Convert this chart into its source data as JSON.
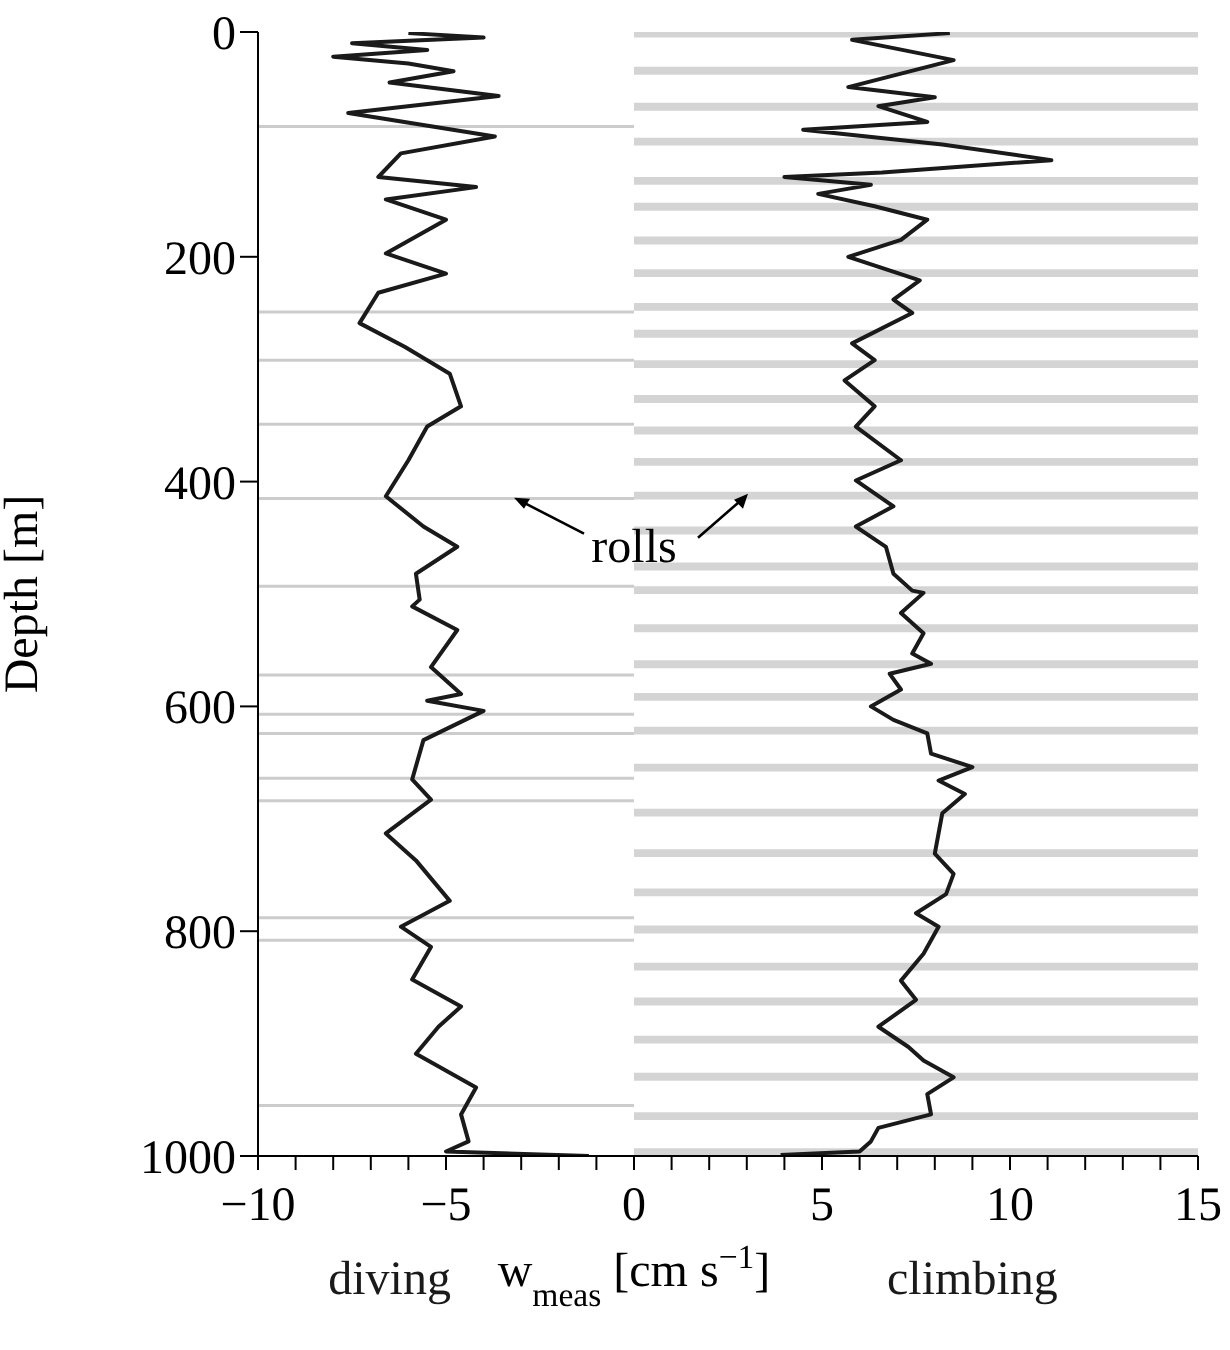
{
  "chart_data": {
    "type": "line",
    "xlabel": "w$_{meas}$ [cm s$^{−1}$]",
    "ylabel": "Depth [m]",
    "xlim": [
      -10,
      15
    ],
    "ylim": [
      1000,
      0
    ],
    "xticks": [
      {
        "value": -10,
        "label": "−10"
      },
      {
        "value": -9,
        "label": null
      },
      {
        "value": -8,
        "label": null
      },
      {
        "value": -7,
        "label": null
      },
      {
        "value": -6,
        "label": null
      },
      {
        "value": -5,
        "label": "−5"
      },
      {
        "value": -4,
        "label": null
      },
      {
        "value": -3,
        "label": null
      },
      {
        "value": -2,
        "label": null
      },
      {
        "value": -1,
        "label": null
      },
      0,
      {
        "value": 1,
        "label": null
      },
      {
        "value": 2,
        "label": null
      },
      {
        "value": 3,
        "label": null
      },
      {
        "value": 4,
        "label": null
      },
      5,
      {
        "value": 6,
        "label": null
      },
      {
        "value": 7,
        "label": null
      },
      {
        "value": 8,
        "label": null
      },
      {
        "value": 9,
        "label": null
      },
      10,
      {
        "value": 11,
        "label": null
      },
      {
        "value": 12,
        "label": null
      },
      {
        "value": 13,
        "label": null
      },
      {
        "value": 14,
        "label": null
      },
      15
    ],
    "yticks": [
      0,
      200,
      400,
      600,
      800,
      1000
    ],
    "series": [
      {
        "name": "diving",
        "color": "#1a1a1a",
        "x": [
          -6.0,
          -4.0,
          -7.5,
          -5.5,
          -8.0,
          -6.0,
          -4.8,
          -6.5,
          -3.6,
          -7.6,
          -3.7,
          -6.2,
          -6.8,
          -4.2,
          -6.6,
          -5.0,
          -6.6,
          -5.0,
          -6.8,
          -7.3,
          -6.1,
          -4.9,
          -4.6,
          -5.5,
          -6.0,
          -6.6,
          -5.6,
          -4.7,
          -5.8,
          -5.7,
          -5.9,
          -4.7,
          -5.4,
          -4.6,
          -5.5,
          -4.0,
          -5.6,
          -5.9,
          -5.4,
          -6.6,
          -5.8,
          -4.9,
          -6.2,
          -5.4,
          -5.9,
          -4.6,
          -5.2,
          -5.8,
          -4.2,
          -4.6,
          -4.4,
          -5.0,
          -1.2
        ],
        "values": [
          1,
          5,
          10,
          16,
          22,
          28,
          35,
          45,
          57,
          72,
          93,
          108,
          129,
          138,
          149,
          167,
          197,
          215,
          232,
          259,
          280,
          304,
          333,
          351,
          381,
          413,
          440,
          458,
          482,
          505,
          511,
          532,
          565,
          589,
          595,
          604,
          630,
          665,
          683,
          713,
          737,
          773,
          796,
          814,
          843,
          867,
          885,
          909,
          939,
          963,
          987,
          996,
          1000
        ]
      },
      {
        "name": "climbing",
        "color": "#1a1a1a",
        "x": [
          8.4,
          5.8,
          8.5,
          5.7,
          8.0,
          6.5,
          7.8,
          4.5,
          8.2,
          11.1,
          6.6,
          4.0,
          6.3,
          4.9,
          6.4,
          7.8,
          7.1,
          5.7,
          7.6,
          6.9,
          7.4,
          5.8,
          6.4,
          5.6,
          6.4,
          5.9,
          7.1,
          5.9,
          6.9,
          5.9,
          6.7,
          6.9,
          7.4,
          7.7,
          7.1,
          7.7,
          7.4,
          7.9,
          6.8,
          7.1,
          6.3,
          6.9,
          7.8,
          7.9,
          9.0,
          8.1,
          8.8,
          8.2,
          8.1,
          8.0,
          8.5,
          8.3,
          7.5,
          8.1,
          7.7,
          7.1,
          7.5,
          6.5,
          7.3,
          7.7,
          8.5,
          7.8,
          7.9,
          6.5,
          6.3,
          6.0,
          3.9
        ],
        "values": [
          1,
          7,
          25,
          49,
          58,
          66,
          80,
          87,
          100,
          114,
          125,
          129,
          136,
          144,
          155,
          167,
          185,
          200,
          221,
          238,
          250,
          277,
          292,
          310,
          333,
          351,
          381,
          399,
          422,
          440,
          458,
          482,
          497,
          499,
          517,
          535,
          553,
          562,
          571,
          585,
          600,
          612,
          624,
          642,
          654,
          666,
          678,
          695,
          713,
          731,
          749,
          767,
          784,
          796,
          820,
          844,
          861,
          885,
          903,
          915,
          930,
          945,
          963,
          975,
          987,
          996,
          999
        ]
      }
    ],
    "ref_lines": [
      {
        "axis": "y",
        "value": 84,
        "color": "#cccccc"
      },
      {
        "axis": "y",
        "value": 249,
        "color": "#cccccc"
      },
      {
        "axis": "y",
        "value": 292,
        "color": "#cccccc"
      },
      {
        "axis": "y",
        "value": 349,
        "color": "#cccccc"
      },
      {
        "axis": "y",
        "value": 415,
        "color": "#cccccc"
      },
      {
        "axis": "y",
        "value": 493,
        "color": "#cccccc"
      },
      {
        "axis": "y",
        "value": 572,
        "color": "#cccccc"
      },
      {
        "axis": "y",
        "value": 607,
        "color": "#cccccc"
      },
      {
        "axis": "y",
        "value": 624,
        "color": "#cccccc"
      },
      {
        "axis": "y",
        "value": 664,
        "color": "#cccccc"
      },
      {
        "axis": "y",
        "value": 684,
        "color": "#cccccc"
      },
      {
        "axis": "y",
        "value": 788,
        "color": "#cccccc"
      },
      {
        "axis": "y",
        "value": 808,
        "color": "#cccccc"
      },
      {
        "axis": "y",
        "value": 955,
        "color": "#cccccc"
      }
    ],
    "bands": [
      {
        "axis": "y",
        "from": 0,
        "to": 5,
        "color": "#d4d4d4"
      },
      {
        "axis": "y",
        "from": 31,
        "to": 38,
        "color": "#d4d4d4"
      },
      {
        "axis": "y",
        "from": 63,
        "to": 70,
        "color": "#d4d4d4"
      },
      {
        "axis": "y",
        "from": 94,
        "to": 101,
        "color": "#d4d4d4"
      },
      {
        "axis": "y",
        "from": 129,
        "to": 136,
        "color": "#d4d4d4"
      },
      {
        "axis": "y",
        "from": 152,
        "to": 159,
        "color": "#d4d4d4"
      },
      {
        "axis": "y",
        "from": 182,
        "to": 189,
        "color": "#d4d4d4"
      },
      {
        "axis": "y",
        "from": 211,
        "to": 218,
        "color": "#d4d4d4"
      },
      {
        "axis": "y",
        "from": 241,
        "to": 248,
        "color": "#d4d4d4"
      },
      {
        "axis": "y",
        "from": 265,
        "to": 272,
        "color": "#d4d4d4"
      },
      {
        "axis": "y",
        "from": 292,
        "to": 299,
        "color": "#d4d4d4"
      },
      {
        "axis": "y",
        "from": 323,
        "to": 330,
        "color": "#d4d4d4"
      },
      {
        "axis": "y",
        "from": 351,
        "to": 358,
        "color": "#d4d4d4"
      },
      {
        "axis": "y",
        "from": 379,
        "to": 386,
        "color": "#d4d4d4"
      },
      {
        "axis": "y",
        "from": 409,
        "to": 416,
        "color": "#d4d4d4"
      },
      {
        "axis": "y",
        "from": 440,
        "to": 447,
        "color": "#d4d4d4"
      },
      {
        "axis": "y",
        "from": 472,
        "to": 479,
        "color": "#d4d4d4"
      },
      {
        "axis": "y",
        "from": 493,
        "to": 500,
        "color": "#d4d4d4"
      },
      {
        "axis": "y",
        "from": 527,
        "to": 534,
        "color": "#d4d4d4"
      },
      {
        "axis": "y",
        "from": 559,
        "to": 566,
        "color": "#d4d4d4"
      },
      {
        "axis": "y",
        "from": 588,
        "to": 595,
        "color": "#d4d4d4"
      },
      {
        "axis": "y",
        "from": 618,
        "to": 625,
        "color": "#d4d4d4"
      },
      {
        "axis": "y",
        "from": 651,
        "to": 658,
        "color": "#d4d4d4"
      },
      {
        "axis": "y",
        "from": 691,
        "to": 698,
        "color": "#d4d4d4"
      },
      {
        "axis": "y",
        "from": 727,
        "to": 734,
        "color": "#d4d4d4"
      },
      {
        "axis": "y",
        "from": 762,
        "to": 769,
        "color": "#d4d4d4"
      },
      {
        "axis": "y",
        "from": 795,
        "to": 802,
        "color": "#d4d4d4"
      },
      {
        "axis": "y",
        "from": 828,
        "to": 835,
        "color": "#d4d4d4"
      },
      {
        "axis": "y",
        "from": 859,
        "to": 866,
        "color": "#d4d4d4"
      },
      {
        "axis": "y",
        "from": 893,
        "to": 900,
        "color": "#d4d4d4"
      },
      {
        "axis": "y",
        "from": 926,
        "to": 933,
        "color": "#d4d4d4"
      },
      {
        "axis": "y",
        "from": 961,
        "to": 968,
        "color": "#d4d4d4"
      },
      {
        "axis": "y",
        "from": 993,
        "to": 1000,
        "color": "#d4d4d4"
      }
    ],
    "annotations": [
      "rolls"
    ]
  }
}
